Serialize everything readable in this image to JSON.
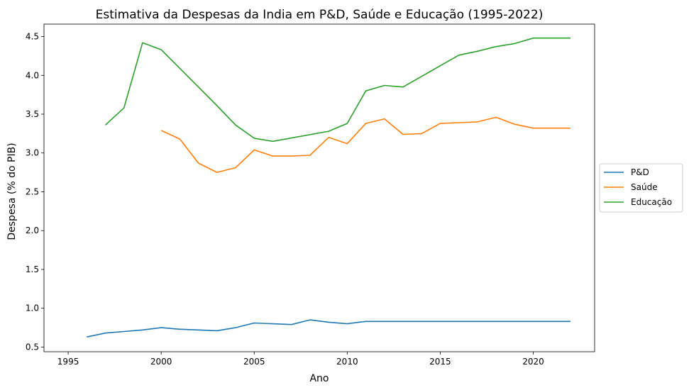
{
  "chart_data": {
    "type": "line",
    "title": "Estimativa da Despesas da India em P&D, Saúde e Educação (1995-2022)",
    "xlabel": "Ano",
    "ylabel": "Despesa (% do PIB)",
    "xlim": [
      1993.7,
      2023.3
    ],
    "ylim": [
      0.44,
      4.66
    ],
    "xticks": [
      1995,
      2000,
      2005,
      2010,
      2015,
      2020
    ],
    "yticks": [
      0.5,
      1.0,
      1.5,
      2.0,
      2.5,
      3.0,
      3.5,
      4.0,
      4.5
    ],
    "grid": false,
    "legend_position": "right-outside",
    "series": [
      {
        "name": "P&D",
        "color": "#1f77b4",
        "x": [
          1996,
          1997,
          1998,
          1999,
          2000,
          2001,
          2002,
          2003,
          2004,
          2005,
          2006,
          2007,
          2008,
          2009,
          2010,
          2011,
          2012,
          2013,
          2014,
          2015,
          2016,
          2017,
          2018,
          2019,
          2020,
          2021,
          2022
        ],
        "y": [
          0.63,
          0.68,
          0.7,
          0.72,
          0.75,
          0.73,
          0.72,
          0.71,
          0.75,
          0.81,
          0.8,
          0.79,
          0.85,
          0.82,
          0.8,
          0.83,
          0.83,
          0.83,
          0.83,
          0.83,
          0.83,
          0.83,
          0.83,
          0.83,
          0.83,
          0.83,
          0.83
        ]
      },
      {
        "name": "Saúde",
        "color": "#ff7f0e",
        "x": [
          2000,
          2001,
          2002,
          2003,
          2004,
          2005,
          2006,
          2007,
          2008,
          2009,
          2010,
          2011,
          2012,
          2013,
          2014,
          2015,
          2016,
          2017,
          2018,
          2019,
          2020,
          2021,
          2022
        ],
        "y": [
          3.29,
          3.18,
          2.87,
          2.75,
          2.81,
          3.04,
          2.96,
          2.96,
          2.97,
          3.2,
          3.12,
          3.38,
          3.44,
          3.24,
          3.25,
          3.38,
          3.39,
          3.4,
          3.46,
          3.37,
          3.32,
          3.32,
          3.32
        ]
      },
      {
        "name": "Educação",
        "color": "#2ca02c",
        "x": [
          1997,
          1998,
          1999,
          2000,
          2003,
          2004,
          2005,
          2006,
          2009,
          2010,
          2011,
          2012,
          2013,
          2016,
          2017,
          2018,
          2019,
          2020,
          2021,
          2022
        ],
        "y": [
          3.36,
          3.58,
          4.42,
          4.33,
          3.61,
          3.36,
          3.19,
          3.15,
          3.28,
          3.38,
          3.8,
          3.87,
          3.85,
          4.26,
          4.31,
          4.37,
          4.41,
          4.48,
          4.48,
          4.48
        ]
      }
    ]
  }
}
